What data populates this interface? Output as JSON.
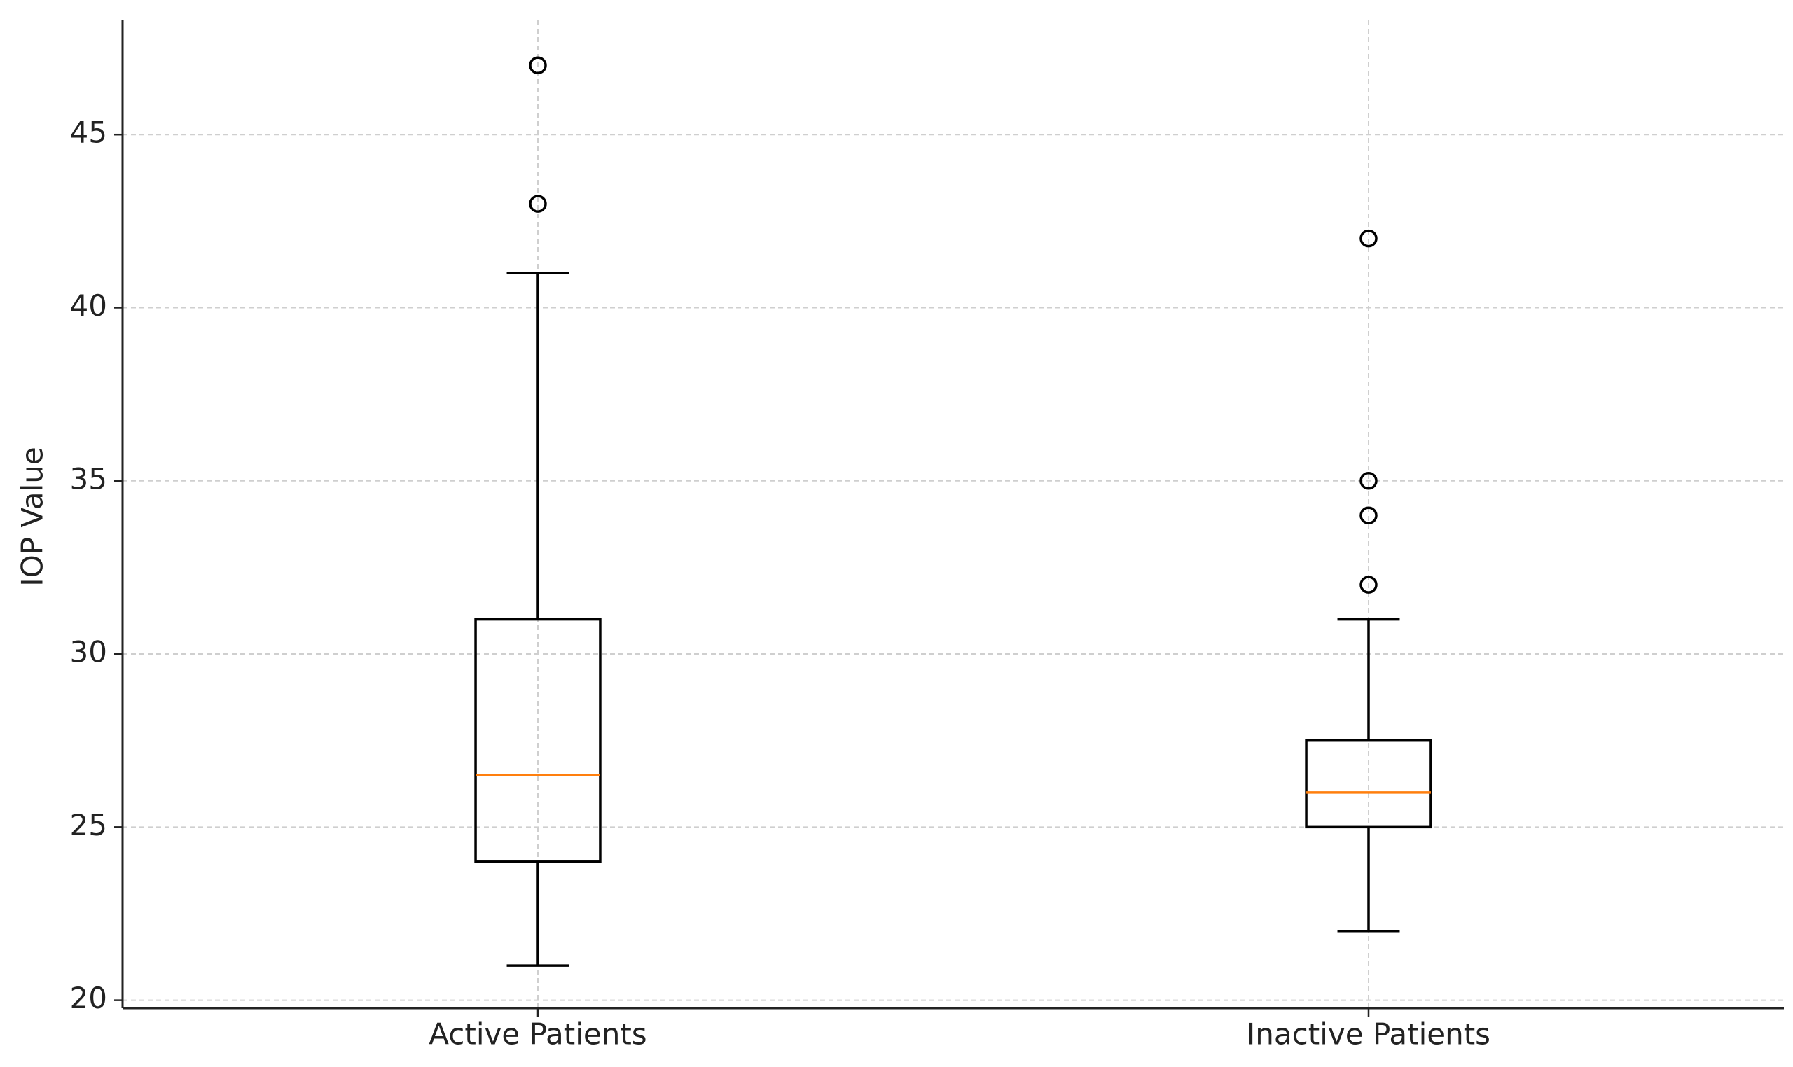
{
  "chart_data": {
    "type": "box",
    "ylabel": "IOP Value",
    "categories": [
      "Active Patients",
      "Inactive Patients"
    ],
    "boxes": [
      {
        "whislo": 21,
        "q1": 24,
        "med": 26.5,
        "q3": 31,
        "whishi": 41,
        "fliers": [
          43,
          47
        ]
      },
      {
        "whislo": 22,
        "q1": 25,
        "med": 26,
        "q3": 27.5,
        "whishi": 31,
        "fliers": [
          32,
          34,
          35,
          42
        ]
      }
    ],
    "box_color": "#000000",
    "median_color": "#ff7f0e",
    "ylim": [
      19.77,
      48.3
    ],
    "yticks": [
      20,
      25,
      30,
      35,
      40,
      45
    ],
    "grid": true
  }
}
